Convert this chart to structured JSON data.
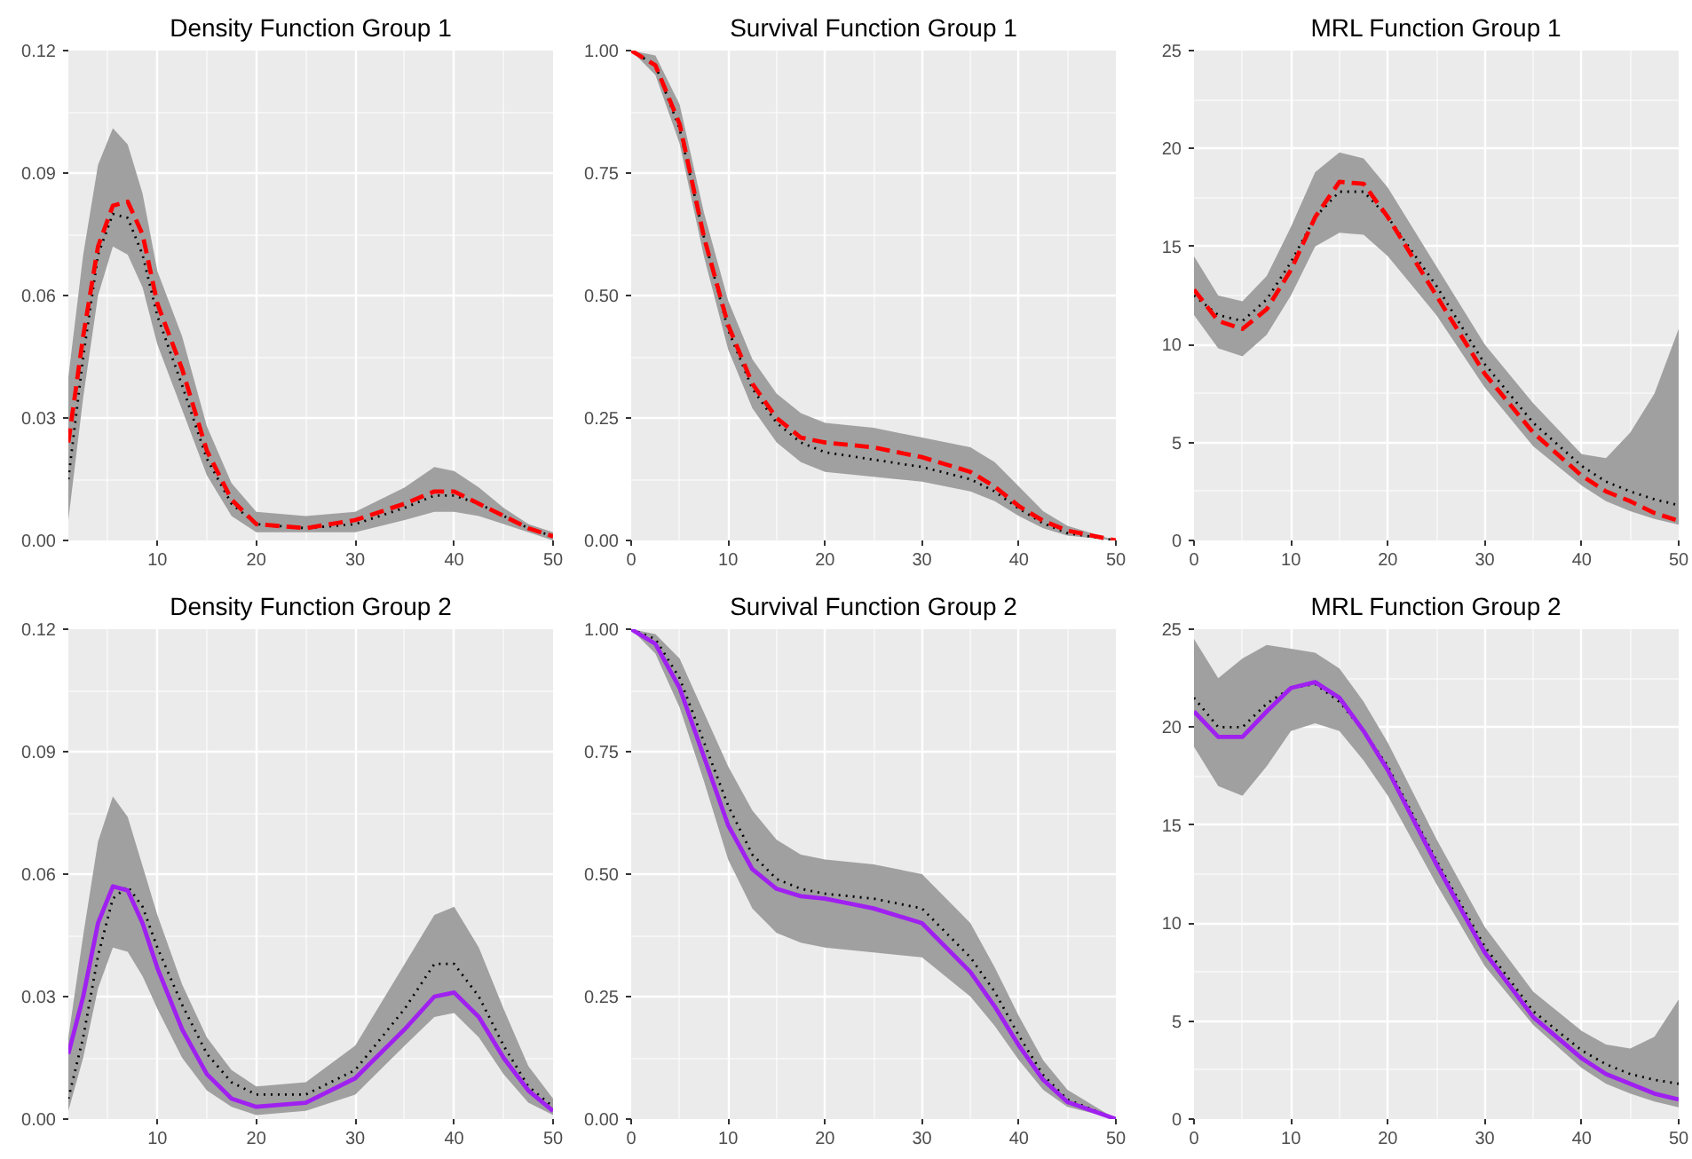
{
  "chart_data": [
    {
      "type": "line",
      "title": "Density Function Group 1",
      "xlim": [
        1,
        50
      ],
      "xticks": [
        10,
        20,
        30,
        40,
        50
      ],
      "ylim": [
        0,
        0.12
      ],
      "yticks": [
        {
          "value": 0,
          "label": "0.00"
        },
        {
          "value": 0.03,
          "label": "0.03"
        },
        {
          "value": 0.06,
          "label": "0.06"
        },
        {
          "value": 0.09,
          "label": "0.09"
        },
        {
          "value": 0.12,
          "label": "0.12"
        }
      ],
      "grid": true,
      "series": [
        {
          "color": "#000000",
          "line_style": "dotted",
          "x": [
            1,
            2.5,
            4,
            5.5,
            7,
            8.5,
            10,
            12.5,
            15,
            17.5,
            20,
            25,
            30,
            35,
            38,
            40,
            42.5,
            45,
            47.5,
            50
          ],
          "values": [
            0.015,
            0.045,
            0.07,
            0.08,
            0.079,
            0.07,
            0.055,
            0.038,
            0.02,
            0.009,
            0.004,
            0.003,
            0.004,
            0.008,
            0.011,
            0.011,
            0.009,
            0.006,
            0.003,
            0.001
          ]
        },
        {
          "color": "#ff0000",
          "line_style": "dashed",
          "x": [
            1,
            2.5,
            4,
            5.5,
            7,
            8.5,
            10,
            12.5,
            15,
            17.5,
            20,
            25,
            30,
            35,
            38,
            40,
            42.5,
            45,
            47.5,
            50
          ],
          "values": [
            0.024,
            0.05,
            0.072,
            0.082,
            0.083,
            0.075,
            0.058,
            0.042,
            0.022,
            0.01,
            0.004,
            0.003,
            0.005,
            0.009,
            0.012,
            0.012,
            0.009,
            0.006,
            0.003,
            0.001
          ],
          "lower": [
            0.005,
            0.035,
            0.06,
            0.072,
            0.07,
            0.062,
            0.048,
            0.032,
            0.016,
            0.006,
            0.002,
            0.002,
            0.002,
            0.005,
            0.007,
            0.007,
            0.006,
            0.004,
            0.002,
            0.0
          ],
          "upper": [
            0.04,
            0.07,
            0.092,
            0.101,
            0.097,
            0.085,
            0.066,
            0.05,
            0.028,
            0.014,
            0.007,
            0.006,
            0.007,
            0.013,
            0.018,
            0.017,
            0.013,
            0.008,
            0.004,
            0.002
          ]
        }
      ]
    },
    {
      "type": "line",
      "title": "Survival Function Group 1",
      "xlim": [
        0,
        50
      ],
      "xticks": [
        0,
        10,
        20,
        30,
        40,
        50
      ],
      "ylim": [
        0,
        1
      ],
      "yticks": [
        {
          "value": 0,
          "label": "0.00"
        },
        {
          "value": 0.25,
          "label": "0.25"
        },
        {
          "value": 0.5,
          "label": "0.50"
        },
        {
          "value": 0.75,
          "label": "0.75"
        },
        {
          "value": 1,
          "label": "1.00"
        }
      ],
      "grid": true,
      "series": [
        {
          "color": "#000000",
          "line_style": "dotted",
          "x": [
            0,
            2.5,
            5,
            7.5,
            10,
            12.5,
            15,
            17.5,
            20,
            25,
            30,
            35,
            37.5,
            40,
            42.5,
            45,
            50
          ],
          "values": [
            1,
            0.97,
            0.84,
            0.62,
            0.43,
            0.31,
            0.24,
            0.2,
            0.18,
            0.165,
            0.15,
            0.125,
            0.1,
            0.065,
            0.035,
            0.015,
            0
          ]
        },
        {
          "color": "#ff0000",
          "line_style": "dashed",
          "x": [
            0,
            2.5,
            5,
            7.5,
            10,
            12.5,
            15,
            17.5,
            20,
            25,
            30,
            35,
            37.5,
            40,
            42.5,
            45,
            50
          ],
          "values": [
            1,
            0.97,
            0.85,
            0.62,
            0.44,
            0.32,
            0.25,
            0.21,
            0.2,
            0.19,
            0.17,
            0.14,
            0.11,
            0.07,
            0.04,
            0.02,
            0
          ],
          "lower": [
            1,
            0.95,
            0.81,
            0.58,
            0.39,
            0.27,
            0.2,
            0.16,
            0.14,
            0.13,
            0.12,
            0.1,
            0.08,
            0.05,
            0.025,
            0.01,
            0
          ],
          "upper": [
            1,
            0.99,
            0.89,
            0.67,
            0.49,
            0.37,
            0.3,
            0.26,
            0.24,
            0.23,
            0.21,
            0.19,
            0.16,
            0.11,
            0.06,
            0.03,
            0
          ]
        }
      ]
    },
    {
      "type": "line",
      "title": "MRL Function Group 1",
      "xlim": [
        0,
        50
      ],
      "xticks": [
        0,
        10,
        20,
        30,
        40,
        50
      ],
      "ylim": [
        0,
        25
      ],
      "yticks": [
        0,
        5,
        10,
        15,
        20,
        25
      ],
      "grid": true,
      "series": [
        {
          "color": "#000000",
          "line_style": "dotted",
          "x": [
            0,
            2.5,
            5,
            7.5,
            10,
            12.5,
            15,
            17.5,
            20,
            25,
            30,
            35,
            40,
            42.5,
            45,
            47.5,
            50
          ],
          "values": [
            12.5,
            11.5,
            11.2,
            12.3,
            14.2,
            16.5,
            17.8,
            17.8,
            16.5,
            13,
            9,
            6,
            3.8,
            3.0,
            2.5,
            2.1,
            1.8
          ]
        },
        {
          "color": "#ff0000",
          "line_style": "dashed",
          "x": [
            0,
            2.5,
            5,
            7.5,
            10,
            12.5,
            15,
            17.5,
            20,
            25,
            30,
            35,
            40,
            42.5,
            45,
            47.5,
            50
          ],
          "values": [
            12.8,
            11.2,
            10.8,
            11.8,
            13.8,
            16.5,
            18.3,
            18.2,
            16.5,
            12.5,
            8.5,
            5.5,
            3.3,
            2.5,
            2.0,
            1.4,
            1.0
          ],
          "lower": [
            11.5,
            9.8,
            9.4,
            10.5,
            12.5,
            15,
            15.7,
            15.6,
            14.5,
            11.5,
            7.8,
            4.8,
            2.8,
            2.0,
            1.5,
            1.1,
            0.8
          ],
          "upper": [
            14.5,
            12.5,
            12.2,
            13.5,
            16,
            18.8,
            19.8,
            19.5,
            18,
            14,
            10,
            7,
            4.4,
            4.2,
            5.5,
            7.5,
            10.8
          ]
        }
      ]
    },
    {
      "type": "line",
      "title": "Density Function Group 2",
      "xlim": [
        1,
        50
      ],
      "xticks": [
        10,
        20,
        30,
        40,
        50
      ],
      "ylim": [
        0,
        0.12
      ],
      "yticks": [
        {
          "value": 0,
          "label": "0.00"
        },
        {
          "value": 0.03,
          "label": "0.03"
        },
        {
          "value": 0.06,
          "label": "0.06"
        },
        {
          "value": 0.09,
          "label": "0.09"
        },
        {
          "value": 0.12,
          "label": "0.12"
        }
      ],
      "grid": true,
      "series": [
        {
          "color": "#000000",
          "line_style": "dotted",
          "x": [
            1,
            2.5,
            4,
            5.5,
            7,
            8.5,
            10,
            12.5,
            15,
            17.5,
            20,
            25,
            30,
            35,
            38,
            40,
            42.5,
            45,
            47.5,
            50
          ],
          "values": [
            0.005,
            0.02,
            0.04,
            0.054,
            0.057,
            0.052,
            0.042,
            0.028,
            0.016,
            0.009,
            0.006,
            0.006,
            0.012,
            0.027,
            0.038,
            0.038,
            0.03,
            0.018,
            0.008,
            0.003
          ]
        },
        {
          "color": "#a020f0",
          "line_style": "solid",
          "x": [
            1,
            2.5,
            4,
            5.5,
            7,
            8.5,
            10,
            12.5,
            15,
            17.5,
            20,
            25,
            30,
            35,
            38,
            40,
            42.5,
            45,
            47.5,
            50
          ],
          "values": [
            0.016,
            0.03,
            0.048,
            0.057,
            0.056,
            0.048,
            0.037,
            0.022,
            0.011,
            0.005,
            0.003,
            0.004,
            0.01,
            0.022,
            0.03,
            0.031,
            0.025,
            0.015,
            0.007,
            0.002
          ],
          "lower": [
            0.002,
            0.015,
            0.032,
            0.042,
            0.041,
            0.035,
            0.027,
            0.015,
            0.007,
            0.003,
            0.001,
            0.002,
            0.006,
            0.018,
            0.025,
            0.026,
            0.02,
            0.011,
            0.004,
            0.001
          ],
          "upper": [
            0.02,
            0.045,
            0.068,
            0.079,
            0.074,
            0.062,
            0.05,
            0.033,
            0.02,
            0.012,
            0.008,
            0.009,
            0.018,
            0.038,
            0.05,
            0.052,
            0.042,
            0.027,
            0.013,
            0.005
          ]
        }
      ]
    },
    {
      "type": "line",
      "title": "Survival Function Group 2",
      "xlim": [
        0,
        50
      ],
      "xticks": [
        0,
        10,
        20,
        30,
        40,
        50
      ],
      "ylim": [
        0,
        1
      ],
      "yticks": [
        {
          "value": 0,
          "label": "0.00"
        },
        {
          "value": 0.25,
          "label": "0.25"
        },
        {
          "value": 0.5,
          "label": "0.50"
        },
        {
          "value": 0.75,
          "label": "0.75"
        },
        {
          "value": 1,
          "label": "1.00"
        }
      ],
      "grid": true,
      "series": [
        {
          "color": "#000000",
          "line_style": "dotted",
          "x": [
            0,
            2.5,
            5,
            7.5,
            10,
            12.5,
            15,
            17.5,
            20,
            25,
            30,
            35,
            37.5,
            40,
            42.5,
            45,
            50
          ],
          "values": [
            1,
            0.98,
            0.9,
            0.77,
            0.64,
            0.54,
            0.49,
            0.47,
            0.46,
            0.45,
            0.43,
            0.33,
            0.26,
            0.17,
            0.09,
            0.04,
            0
          ]
        },
        {
          "color": "#a020f0",
          "line_style": "solid",
          "x": [
            0,
            2.5,
            5,
            7.5,
            10,
            12.5,
            15,
            17.5,
            20,
            25,
            30,
            35,
            37.5,
            40,
            42.5,
            45,
            50
          ],
          "values": [
            1,
            0.97,
            0.88,
            0.74,
            0.6,
            0.51,
            0.47,
            0.455,
            0.45,
            0.43,
            0.4,
            0.3,
            0.23,
            0.15,
            0.08,
            0.035,
            0
          ],
          "lower": [
            1,
            0.95,
            0.84,
            0.69,
            0.53,
            0.43,
            0.38,
            0.36,
            0.35,
            0.34,
            0.33,
            0.25,
            0.19,
            0.12,
            0.06,
            0.025,
            0
          ],
          "upper": [
            1,
            0.99,
            0.94,
            0.83,
            0.72,
            0.63,
            0.57,
            0.54,
            0.53,
            0.52,
            0.5,
            0.4,
            0.31,
            0.21,
            0.12,
            0.06,
            0
          ]
        }
      ]
    },
    {
      "type": "line",
      "title": "MRL Function Group 2",
      "xlim": [
        0,
        50
      ],
      "xticks": [
        0,
        10,
        20,
        30,
        40,
        50
      ],
      "ylim": [
        0,
        25
      ],
      "yticks": [
        0,
        5,
        10,
        15,
        20,
        25
      ],
      "grid": true,
      "series": [
        {
          "color": "#000000",
          "line_style": "dotted",
          "x": [
            0,
            2.5,
            5,
            7.5,
            10,
            12.5,
            15,
            17.5,
            20,
            25,
            30,
            35,
            40,
            42.5,
            45,
            47.5,
            50
          ],
          "values": [
            21.5,
            20,
            20,
            21.2,
            22,
            22.2,
            21.3,
            19.8,
            18,
            13.2,
            8.8,
            5.5,
            3.5,
            2.8,
            2.3,
            2.0,
            1.8
          ]
        },
        {
          "color": "#a020f0",
          "line_style": "solid",
          "x": [
            0,
            2.5,
            5,
            7.5,
            10,
            12.5,
            15,
            17.5,
            20,
            25,
            30,
            35,
            40,
            42.5,
            45,
            47.5,
            50
          ],
          "values": [
            20.8,
            19.5,
            19.5,
            20.8,
            22,
            22.3,
            21.5,
            19.8,
            17.8,
            13,
            8.5,
            5.2,
            3.1,
            2.3,
            1.8,
            1.3,
            1.0
          ],
          "lower": [
            19,
            17,
            16.5,
            18,
            19.8,
            20.2,
            19.8,
            18.3,
            16.5,
            12,
            7.8,
            4.8,
            2.6,
            1.8,
            1.3,
            0.9,
            0.6
          ],
          "upper": [
            24.5,
            22.5,
            23.5,
            24.2,
            24,
            23.8,
            23,
            21.3,
            19.2,
            14.3,
            9.8,
            6.5,
            4.5,
            3.8,
            3.6,
            4.2,
            6.1
          ]
        }
      ]
    }
  ]
}
